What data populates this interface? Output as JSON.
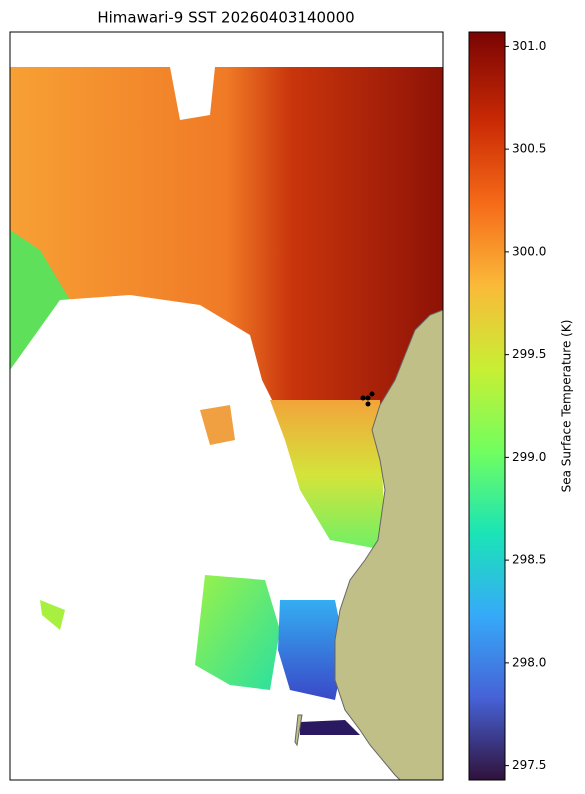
{
  "chart_data": {
    "type": "colormap-map",
    "title": "Himawari-9 SST 20260403140000",
    "colorbar_label": "Sea Surface Temperature (K)",
    "colormap": "turbo",
    "clim": [
      297.43,
      301.07
    ],
    "cticks": [
      297.5,
      {
        "value": 298,
        "label": "298.0"
      },
      298.5,
      {
        "value": 299,
        "label": "299.0"
      },
      299.5,
      {
        "value": 300,
        "label": "300.0"
      },
      300.5,
      {
        "value": 301,
        "label": "301.0"
      }
    ]
  }
}
